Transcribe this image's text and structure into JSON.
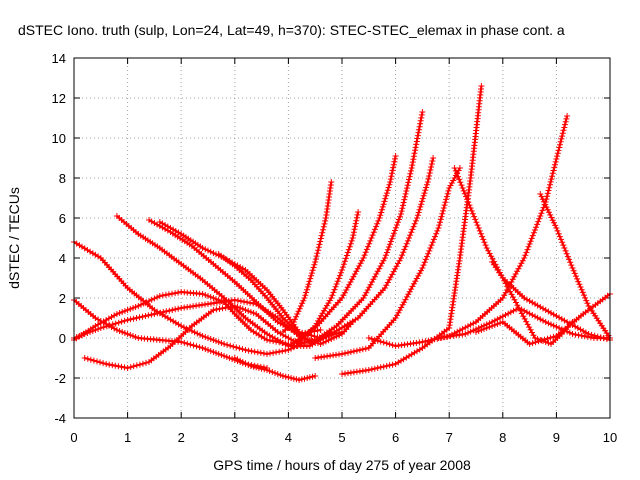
{
  "chart_data": {
    "type": "scatter",
    "title": "dSTEC Iono. truth (sulp, Lon=24, Lat=49, h=370): STEC-STEC_elemax in phase cont. a",
    "xlabel": "GPS time / hours of day 275 of year 2008",
    "ylabel": "dSTEC  / TECUs",
    "xlim": [
      0,
      10
    ],
    "ylim": [
      -4,
      14
    ],
    "x_ticks": [
      "0",
      "1",
      "2",
      "3",
      "4",
      "5",
      "6",
      "7",
      "8",
      "9",
      "10"
    ],
    "y_ticks": [
      "-4",
      "-2",
      "0",
      "2",
      "4",
      "6",
      "8",
      "10",
      "12",
      "14"
    ],
    "grid": true,
    "marker": "+",
    "color": "#ff0000",
    "series": [
      {
        "x": [
          0.0,
          0.5,
          1.0,
          1.5,
          2.0,
          2.4,
          2.8,
          3.2,
          3.6,
          4.0,
          4.3
        ],
        "y": [
          4.8,
          4.0,
          2.5,
          1.4,
          0.6,
          0.1,
          -0.3,
          -0.6,
          -0.8,
          -0.6,
          -0.2
        ]
      },
      {
        "x": [
          0.0,
          0.4,
          0.8,
          1.2,
          1.6,
          2.0,
          2.4,
          2.8,
          3.2,
          3.6
        ],
        "y": [
          1.9,
          1.0,
          0.4,
          0.0,
          -0.1,
          -0.2,
          -0.5,
          -0.9,
          -1.3,
          -1.5
        ]
      },
      {
        "x": [
          0.0,
          0.4,
          0.8,
          1.2,
          1.6,
          2.0,
          2.4,
          2.8,
          3.0,
          3.3,
          3.6,
          4.0
        ],
        "y": [
          -0.1,
          0.6,
          1.2,
          1.6,
          2.1,
          2.3,
          2.2,
          1.8,
          1.2,
          0.4,
          -0.1,
          -0.3
        ]
      },
      {
        "x": [
          0.2,
          0.6,
          1.0,
          1.4,
          1.8,
          2.2,
          2.6,
          3.0,
          3.4,
          3.8,
          4.2,
          4.6,
          4.8
        ],
        "y": [
          -1.0,
          -1.3,
          -1.5,
          -1.2,
          -0.4,
          0.6,
          1.4,
          1.6,
          1.2,
          0.3,
          -0.3,
          0.0,
          0.3
        ]
      },
      {
        "x": [
          0.0,
          0.5,
          1.0,
          1.5,
          2.0,
          2.5,
          3.0,
          3.4,
          3.8,
          4.2,
          4.6,
          5.0,
          5.2
        ],
        "y": [
          0.0,
          0.5,
          0.9,
          1.2,
          1.5,
          1.7,
          1.9,
          1.7,
          1.0,
          0.1,
          -0.3,
          0.2,
          0.8
        ]
      },
      {
        "x": [
          0.8,
          1.2,
          1.6,
          2.0,
          2.4,
          2.8,
          3.2,
          3.6,
          4.0,
          4.4,
          4.8
        ],
        "y": [
          6.1,
          5.2,
          4.5,
          3.7,
          2.9,
          2.0,
          1.0,
          0.2,
          -0.4,
          -0.4,
          0.2
        ]
      },
      {
        "x": [
          1.4,
          1.8,
          2.2,
          2.6,
          3.0,
          3.4,
          3.8,
          4.2,
          4.6
        ],
        "y": [
          5.9,
          5.3,
          4.6,
          3.7,
          2.8,
          1.8,
          0.8,
          0.2,
          0.4
        ]
      },
      {
        "x": [
          1.6,
          2.0,
          2.4,
          2.8,
          3.2,
          3.6,
          3.9,
          4.2,
          4.6,
          5.0
        ],
        "y": [
          5.8,
          5.2,
          4.5,
          4.0,
          3.4,
          2.4,
          1.4,
          0.3,
          0.0,
          0.3
        ]
      },
      {
        "x": [
          2.7,
          3.0,
          3.3,
          3.6,
          3.9,
          4.2,
          4.4
        ],
        "y": [
          4.2,
          3.6,
          2.9,
          2.0,
          1.0,
          0.2,
          -0.2
        ]
      },
      {
        "x": [
          3.0,
          3.3,
          3.6,
          3.9,
          4.2,
          4.5
        ],
        "y": [
          -1.0,
          -1.4,
          -1.6,
          -1.9,
          -2.1,
          -1.9
        ]
      },
      {
        "x": [
          3.9,
          4.1,
          4.3,
          4.5,
          4.7,
          4.8
        ],
        "y": [
          0.3,
          0.8,
          2.0,
          3.8,
          6.0,
          7.8
        ]
      },
      {
        "x": [
          4.2,
          4.5,
          4.8,
          5.0,
          5.2,
          5.3
        ],
        "y": [
          -0.2,
          0.6,
          2.0,
          3.4,
          5.0,
          6.3
        ]
      },
      {
        "x": [
          4.0,
          4.5,
          5.0,
          5.4,
          5.7,
          5.9,
          6.0
        ],
        "y": [
          -0.4,
          0.5,
          2.0,
          4.0,
          6.0,
          7.8,
          9.1
        ]
      },
      {
        "x": [
          4.4,
          4.9,
          5.4,
          5.8,
          6.1,
          6.3,
          6.5
        ],
        "y": [
          -0.3,
          0.6,
          2.0,
          4.0,
          6.2,
          8.5,
          11.3
        ]
      },
      {
        "x": [
          4.8,
          5.3,
          5.8,
          6.1,
          6.4,
          6.6,
          6.7
        ],
        "y": [
          0.2,
          1.0,
          2.5,
          4.0,
          6.0,
          7.8,
          9.0
        ]
      },
      {
        "x": [
          5.0,
          5.5,
          6.0,
          6.5,
          7.0,
          7.2,
          7.4,
          7.6
        ],
        "y": [
          -1.8,
          -1.6,
          -1.3,
          -0.5,
          0.5,
          4.0,
          8.0,
          12.6
        ]
      },
      {
        "x": [
          4.5,
          5.0,
          5.5,
          6.0,
          6.5,
          6.8,
          7.0,
          7.2
        ],
        "y": [
          -1.0,
          -0.8,
          -0.5,
          1.0,
          3.5,
          5.5,
          7.5,
          8.5
        ]
      },
      {
        "x": [
          7.1,
          7.4,
          7.7,
          8.0,
          8.4,
          8.8,
          9.2,
          9.6,
          10.0
        ],
        "y": [
          8.5,
          6.5,
          4.5,
          3.0,
          2.0,
          1.4,
          0.8,
          0.2,
          -0.1
        ]
      },
      {
        "x": [
          7.8,
          8.0,
          8.3,
          8.6,
          8.9,
          9.1,
          9.3
        ],
        "y": [
          3.8,
          3.0,
          1.5,
          0.0,
          -0.3,
          0.2,
          0.8
        ]
      },
      {
        "x": [
          5.5,
          6.0,
          6.5,
          7.0,
          7.5,
          8.0,
          8.4,
          8.8,
          9.2
        ],
        "y": [
          0.0,
          -0.4,
          -0.2,
          0.1,
          0.8,
          2.0,
          4.0,
          6.8,
          11.1
        ]
      },
      {
        "x": [
          8.7,
          9.0,
          9.3,
          9.6,
          10.0
        ],
        "y": [
          7.2,
          5.5,
          3.5,
          1.6,
          0.0
        ]
      },
      {
        "x": [
          6.8,
          7.3,
          7.8,
          8.3,
          8.8,
          9.3,
          9.7,
          10.0
        ],
        "y": [
          0.0,
          0.2,
          0.8,
          1.5,
          0.8,
          0.2,
          0.0,
          0.0
        ]
      },
      {
        "x": [
          7.5,
          8.0,
          8.5,
          9.0,
          9.5,
          10.0
        ],
        "y": [
          0.3,
          0.8,
          -0.3,
          0.1,
          1.2,
          2.2
        ]
      }
    ]
  }
}
